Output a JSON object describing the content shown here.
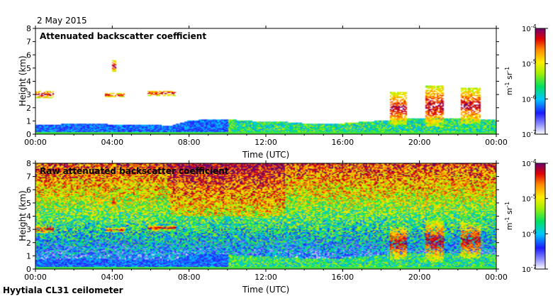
{
  "date": "2 May 2015",
  "footer": "Hyytiala CL31 ceilometer",
  "chart_data": [
    {
      "type": "heatmap",
      "title": "Attenuated backscatter coefficient",
      "xlabel": "Time (UTC)",
      "ylabel": "Height (km)",
      "xticks": [
        "00:00",
        "04:00",
        "08:00",
        "12:00",
        "16:00",
        "20:00",
        "00:00"
      ],
      "xlim_hours": [
        0,
        24
      ],
      "yticks": [
        0,
        1,
        2,
        3,
        4,
        5,
        6,
        7,
        8
      ],
      "ylim": [
        0,
        8
      ],
      "colorbar": {
        "scale": "log",
        "range": [
          1e-07,
          0.0001
        ],
        "ticks": [
          "10^-7",
          "10^-6",
          "10^-5",
          "10^-4"
        ],
        "unit": "m^-1 sr^-1"
      },
      "features": {
        "boundary_layer_top_km": [
          0.7,
          0.7,
          0.8,
          0.8,
          0.7,
          0.7,
          0.7,
          0.6,
          1.0,
          1.1,
          1.1,
          1.0,
          0.9,
          0.9,
          0.8,
          0.8,
          0.8,
          0.9,
          1.0,
          1.1,
          1.2,
          1.2,
          1.2,
          1.1
        ],
        "cloud_layers": [
          {
            "t0": 0.0,
            "t1": 0.9,
            "h0": 2.7,
            "h1": 3.3
          },
          {
            "t0": 3.6,
            "t1": 4.6,
            "h0": 2.8,
            "h1": 3.1
          },
          {
            "t0": 5.8,
            "t1": 7.3,
            "h0": 2.9,
            "h1": 3.3
          },
          {
            "t0": 4.0,
            "t1": 4.2,
            "h0": 4.7,
            "h1": 5.6
          },
          {
            "t0": 18.5,
            "t1": 19.4,
            "h0": 0.7,
            "h1": 3.2
          },
          {
            "t0": 20.3,
            "t1": 21.3,
            "h0": 0.5,
            "h1": 3.7
          },
          {
            "t0": 22.2,
            "t1": 23.2,
            "h0": 0.8,
            "h1": 3.5
          }
        ]
      }
    },
    {
      "type": "heatmap",
      "title": "Raw attenuated backscatter coefficient",
      "xlabel": "Time (UTC)",
      "ylabel": "Height (km)",
      "xticks": [
        "00:00",
        "04:00",
        "08:00",
        "12:00",
        "16:00",
        "20:00",
        "00:00"
      ],
      "xlim_hours": [
        0,
        24
      ],
      "yticks": [
        0,
        1,
        2,
        3,
        4,
        5,
        6,
        7,
        8
      ],
      "ylim": [
        0,
        8
      ],
      "colorbar": {
        "scale": "log",
        "range": [
          1e-07,
          0.0001
        ],
        "ticks": [
          "10^-7",
          "10^-6",
          "10^-5",
          "10^-4"
        ],
        "unit": "m^-1 sr^-1"
      }
    }
  ]
}
